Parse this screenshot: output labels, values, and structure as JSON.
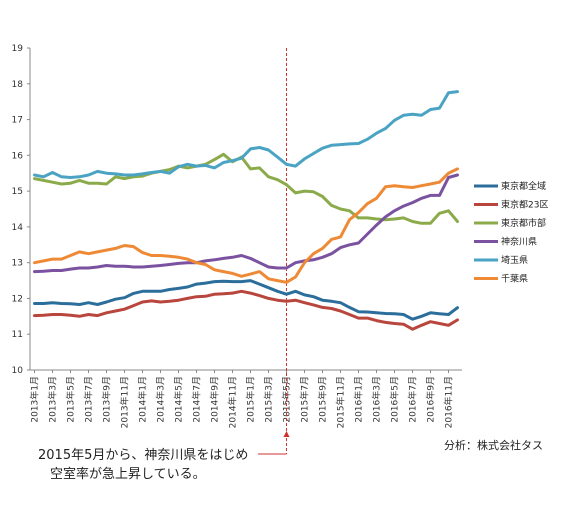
{
  "chart_data": {
    "type": "line",
    "title": "",
    "xlabel": "",
    "ylabel": "",
    "ylim": [
      10,
      19
    ],
    "yticks": [
      10,
      11,
      12,
      13,
      14,
      15,
      16,
      17,
      18,
      19
    ],
    "grid": false,
    "legend_placement": "right",
    "x_tick_labels": [
      "2013年1月",
      "2013年3月",
      "2013年5月",
      "2013年7月",
      "2013年9月",
      "2013年11月",
      "2014年1月",
      "2014年3月",
      "2014年5月",
      "2014年7月",
      "2014年9月",
      "2014年11月",
      "2015年1月",
      "2015年3月",
      "2015年5月",
      "2015年7月",
      "2015年9月",
      "2015年11月",
      "2016年1月",
      "2016年3月",
      "2016年5月",
      "2016年7月",
      "2016年9月",
      "2016年11月"
    ],
    "x_range": [
      "2013-01",
      "2016-12"
    ],
    "x": [
      "2013-01",
      "2013-02",
      "2013-03",
      "2013-04",
      "2013-05",
      "2013-06",
      "2013-07",
      "2013-08",
      "2013-09",
      "2013-10",
      "2013-11",
      "2013-12",
      "2014-01",
      "2014-02",
      "2014-03",
      "2014-04",
      "2014-05",
      "2014-06",
      "2014-07",
      "2014-08",
      "2014-09",
      "2014-10",
      "2014-11",
      "2014-12",
      "2015-01",
      "2015-02",
      "2015-03",
      "2015-04",
      "2015-05",
      "2015-06",
      "2015-07",
      "2015-08",
      "2015-09",
      "2015-10",
      "2015-11",
      "2015-12",
      "2016-01",
      "2016-02",
      "2016-03",
      "2016-04",
      "2016-05",
      "2016-06",
      "2016-07",
      "2016-08",
      "2016-09",
      "2016-10",
      "2016-11",
      "2016-12"
    ],
    "series": [
      {
        "name": "東京都全域",
        "color": "#2c6e9b",
        "values": [
          11.86,
          11.86,
          11.88,
          11.86,
          11.85,
          11.83,
          11.88,
          11.83,
          11.9,
          11.98,
          12.02,
          12.14,
          12.2,
          12.2,
          12.2,
          12.25,
          12.28,
          12.32,
          12.4,
          12.43,
          12.47,
          12.48,
          12.47,
          12.47,
          12.5,
          12.4,
          12.3,
          12.2,
          12.12,
          12.2,
          12.1,
          12.05,
          11.95,
          11.92,
          11.88,
          11.75,
          11.63,
          11.62,
          11.6,
          11.58,
          11.57,
          11.55,
          11.42,
          11.5,
          11.6,
          11.57,
          11.55,
          11.74
        ]
      },
      {
        "name": "東京都23区",
        "color": "#b8463c",
        "values": [
          11.52,
          11.53,
          11.55,
          11.55,
          11.53,
          11.5,
          11.55,
          11.52,
          11.6,
          11.65,
          11.7,
          11.8,
          11.9,
          11.93,
          11.9,
          11.92,
          11.95,
          12.0,
          12.05,
          12.06,
          12.12,
          12.13,
          12.15,
          12.2,
          12.15,
          12.08,
          12.0,
          11.95,
          11.92,
          11.95,
          11.88,
          11.82,
          11.75,
          11.72,
          11.65,
          11.55,
          11.45,
          11.45,
          11.38,
          11.33,
          11.3,
          11.28,
          11.14,
          11.25,
          11.35,
          11.3,
          11.25,
          11.4
        ]
      },
      {
        "name": "東京都市部",
        "color": "#8bab4b",
        "values": [
          15.35,
          15.3,
          15.25,
          15.2,
          15.22,
          15.3,
          15.22,
          15.22,
          15.2,
          15.4,
          15.35,
          15.4,
          15.42,
          15.5,
          15.55,
          15.6,
          15.7,
          15.65,
          15.7,
          15.75,
          15.88,
          16.03,
          15.82,
          15.95,
          15.62,
          15.65,
          15.4,
          15.32,
          15.18,
          14.95,
          15.0,
          14.98,
          14.85,
          14.6,
          14.5,
          14.45,
          14.25,
          14.25,
          14.22,
          14.2,
          14.22,
          14.25,
          14.15,
          14.1,
          14.1,
          14.38,
          14.45,
          14.15
        ]
      },
      {
        "name": "神奈川県",
        "color": "#7a52a0",
        "values": [
          12.75,
          12.76,
          12.78,
          12.78,
          12.82,
          12.85,
          12.85,
          12.88,
          12.92,
          12.9,
          12.9,
          12.88,
          12.88,
          12.9,
          12.92,
          12.95,
          12.98,
          13.0,
          13.0,
          13.05,
          13.08,
          13.12,
          13.15,
          13.2,
          13.12,
          13.0,
          12.88,
          12.85,
          12.85,
          13.0,
          13.05,
          13.08,
          13.15,
          13.25,
          13.42,
          13.5,
          13.55,
          13.8,
          14.05,
          14.28,
          14.45,
          14.58,
          14.68,
          14.8,
          14.88,
          14.88,
          15.38,
          15.45
        ]
      },
      {
        "name": "埼玉県",
        "color": "#4aa3c3",
        "values": [
          15.45,
          15.4,
          15.52,
          15.4,
          15.38,
          15.4,
          15.45,
          15.55,
          15.5,
          15.48,
          15.45,
          15.45,
          15.48,
          15.52,
          15.55,
          15.5,
          15.68,
          15.75,
          15.7,
          15.72,
          15.65,
          15.8,
          15.85,
          15.92,
          16.18,
          16.22,
          16.15,
          15.95,
          15.75,
          15.7,
          15.9,
          16.05,
          16.2,
          16.28,
          16.3,
          16.32,
          16.33,
          16.45,
          16.62,
          16.75,
          16.98,
          17.12,
          17.15,
          17.12,
          17.28,
          17.32,
          17.75,
          17.78
        ]
      },
      {
        "name": "千葉県",
        "color": "#ee8a35",
        "values": [
          13.0,
          13.05,
          13.1,
          13.1,
          13.2,
          13.3,
          13.25,
          13.3,
          13.35,
          13.4,
          13.48,
          13.45,
          13.28,
          13.2,
          13.2,
          13.18,
          13.15,
          13.1,
          13.0,
          12.95,
          12.8,
          12.75,
          12.7,
          12.62,
          12.68,
          12.75,
          12.55,
          12.5,
          12.45,
          12.6,
          13.0,
          13.25,
          13.4,
          13.65,
          13.72,
          14.2,
          14.4,
          14.65,
          14.8,
          15.12,
          15.15,
          15.12,
          15.1,
          15.15,
          15.2,
          15.25,
          15.5,
          15.62
        ]
      }
    ],
    "annotation": {
      "at": "2015-05",
      "text_lines": [
        "2015年5月から、神奈川県をはじめ",
        "空室率が急上昇している。"
      ]
    },
    "source": "分析：株式会社タス"
  }
}
